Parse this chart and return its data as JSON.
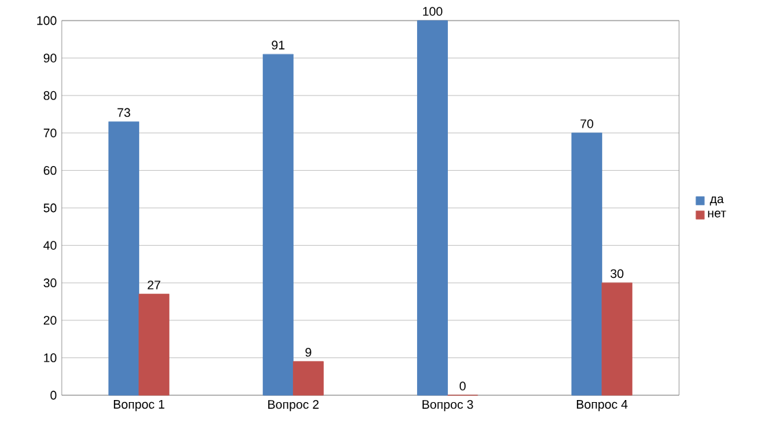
{
  "chart_data": {
    "type": "bar",
    "categories": [
      "Вопрос 1",
      "Вопрос 2",
      "Вопрос 3",
      "Вопрос 4"
    ],
    "series": [
      {
        "name": "да",
        "color": "#4f81bd",
        "values": [
          73,
          91,
          100,
          70
        ]
      },
      {
        "name": "нет",
        "color": "#c0504d",
        "values": [
          27,
          9,
          0,
          30
        ]
      }
    ],
    "ylim": [
      0,
      100
    ],
    "yticks": [
      0,
      10,
      20,
      30,
      40,
      50,
      60,
      70,
      80,
      90,
      100
    ],
    "grid": "y",
    "legend": "right",
    "data_labels": true
  }
}
